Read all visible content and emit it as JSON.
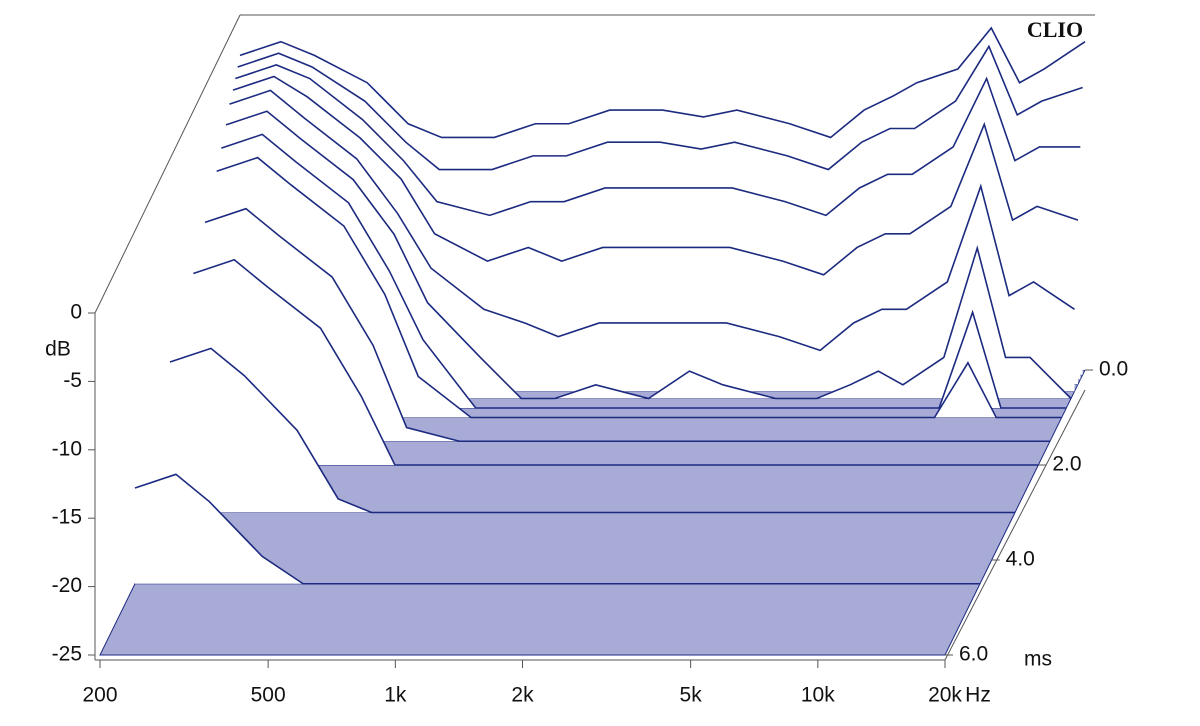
{
  "chart_data": {
    "type": "waterfall",
    "watermark": "CLIO",
    "y_label": "dB",
    "x_unit": "Hz",
    "z_unit": "ms",
    "color": "#1c2a80",
    "floor_color": "#a7abd6",
    "log_x": true,
    "xlim": [
      200,
      20000
    ],
    "xticks": [
      200,
      500,
      {
        "value": 1000,
        "label": "1k"
      },
      {
        "value": 2000,
        "label": "2k"
      },
      {
        "value": 5000,
        "label": "5k"
      },
      {
        "value": 10000,
        "label": "10k"
      },
      {
        "value": 20000,
        "label": "20k"
      }
    ],
    "ylim": [
      -25,
      0
    ],
    "yticks": [
      0,
      -5,
      -10,
      -15,
      -20,
      -25
    ],
    "zlim": [
      0,
      6
    ],
    "zticks": [
      {
        "value": 0,
        "label": "0.0"
      },
      {
        "value": 2,
        "label": "2.0"
      },
      {
        "value": 4,
        "label": "4.0"
      },
      {
        "value": 6,
        "label": "6.0"
      }
    ],
    "x": [
      200,
      250,
      300,
      400,
      500,
      600,
      800,
      1000,
      1200,
      1500,
      2000,
      2500,
      3000,
      4000,
      5000,
      6000,
      7000,
      8000,
      10000,
      12000,
      14000,
      16000,
      20000
    ],
    "slices": [
      {
        "time": 0,
        "values": [
          -2,
          -1,
          -2,
          -4,
          -7,
          -8,
          -8,
          -7,
          -7,
          -6,
          -6,
          -6.5,
          -6,
          -7,
          -8,
          -6,
          -5,
          -4,
          -3,
          0,
          -4,
          -3,
          -1
        ]
      },
      {
        "time": 0.1,
        "values": [
          -2.5,
          -1.5,
          -2.5,
          -5,
          -8,
          -10,
          -10,
          -9,
          -9,
          -8,
          -8,
          -8.5,
          -8,
          -9,
          -10,
          -8,
          -7,
          -7,
          -5,
          -1,
          -6,
          -5,
          -4
        ]
      },
      {
        "time": 0.2,
        "values": [
          -3,
          -2,
          -3,
          -6,
          -9,
          -12,
          -13,
          -12,
          -12,
          -11,
          -11,
          -11,
          -11,
          -12,
          -13,
          -11,
          -10,
          -10,
          -8,
          -3,
          -9,
          -8,
          -8
        ]
      },
      {
        "time": 0.3,
        "values": [
          -3.5,
          -2.5,
          -4,
          -7,
          -10,
          -14,
          -16,
          -15,
          -16,
          -15,
          -15,
          -15,
          -15,
          -16,
          -17,
          -15,
          -14,
          -14,
          -12,
          -6,
          -13,
          -12,
          -13
        ]
      },
      {
        "time": 0.45,
        "values": [
          -4,
          -3,
          -5,
          -8,
          -12,
          -16,
          -19,
          -20,
          -21,
          -20,
          -20,
          -20,
          -20,
          -21,
          -22,
          -20,
          -19,
          -19,
          -17,
          -10,
          -18,
          -17,
          -19
        ]
      },
      {
        "time": 0.6,
        "values": [
          -5,
          -4,
          -6,
          -9,
          -13,
          -18,
          -22,
          -25,
          -25,
          -24,
          -25,
          -23,
          -24,
          -25,
          -25,
          -24,
          -23,
          -24,
          -22,
          -14,
          -22,
          -22,
          -25
        ]
      },
      {
        "time": 0.8,
        "values": [
          -6,
          -5,
          -7,
          -10,
          -15,
          -20,
          -25,
          -25,
          -25,
          -25,
          -25,
          -25,
          -25,
          -25,
          -25,
          -25,
          -25,
          -25,
          -25,
          -18,
          -25,
          -25,
          -25
        ]
      },
      {
        "time": 1.0,
        "values": [
          -7,
          -6,
          -8,
          -11,
          -16,
          -22,
          -25,
          -25,
          -25,
          -25,
          -25,
          -25,
          -25,
          -25,
          -25,
          -25,
          -25,
          -25,
          -25,
          -21,
          -25,
          -25,
          -25
        ]
      },
      {
        "time": 1.5,
        "values": [
          -9,
          -8,
          -10,
          -13,
          -18,
          -24,
          -25,
          -25,
          -25,
          -25,
          -25,
          -25,
          -25,
          -25,
          -25,
          -25,
          -25,
          -25,
          -25,
          -25,
          -25,
          -25,
          -25
        ]
      },
      {
        "time": 2.0,
        "values": [
          -11,
          -10,
          -12,
          -15,
          -20,
          -25,
          -25,
          -25,
          -25,
          -25,
          -25,
          -25,
          -25,
          -25,
          -25,
          -25,
          -25,
          -25,
          -25,
          -25,
          -25,
          -25,
          -25
        ]
      },
      {
        "time": 3.0,
        "values": [
          -14,
          -13,
          -15,
          -19,
          -24,
          -25,
          -25,
          -25,
          -25,
          -25,
          -25,
          -25,
          -25,
          -25,
          -25,
          -25,
          -25,
          -25,
          -25,
          -25,
          -25,
          -25,
          -25
        ]
      },
      {
        "time": 4.5,
        "values": [
          -18,
          -17,
          -19,
          -23,
          -25,
          -25,
          -25,
          -25,
          -25,
          -25,
          -25,
          -25,
          -25,
          -25,
          -25,
          -25,
          -25,
          -25,
          -25,
          -25,
          -25,
          -25,
          -25
        ]
      }
    ]
  }
}
